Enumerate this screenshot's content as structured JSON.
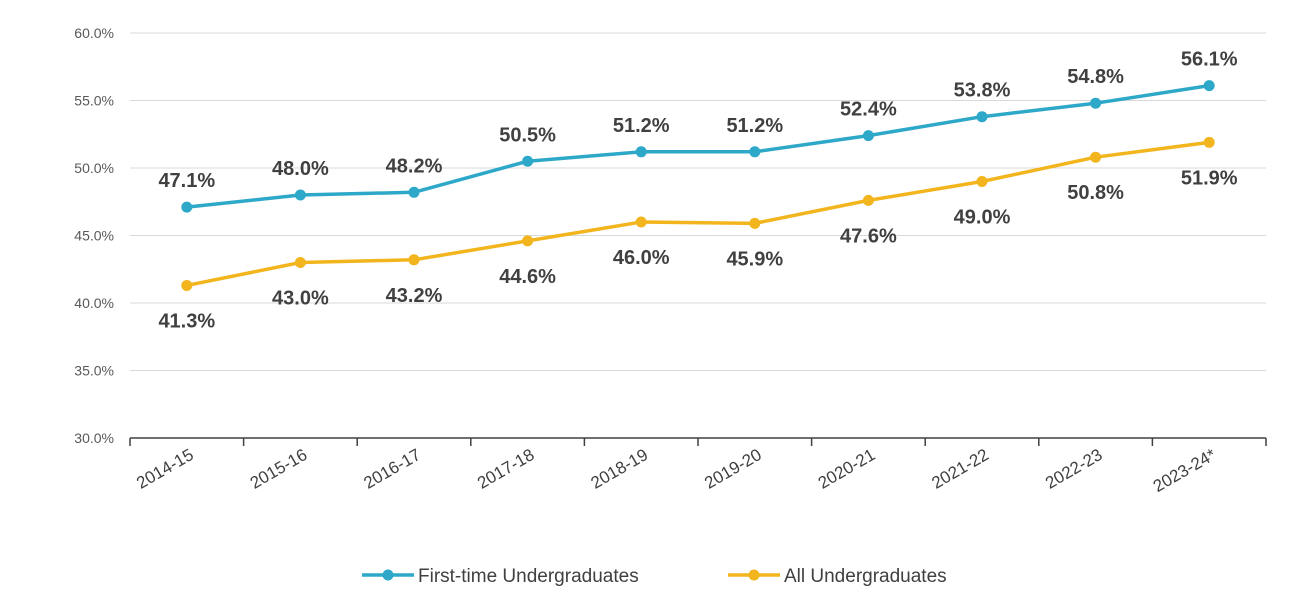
{
  "chart_data": {
    "type": "line",
    "title": "",
    "xlabel": "",
    "ylabel": "",
    "ylim": [
      30,
      60
    ],
    "y_ticks": [
      30,
      35,
      40,
      45,
      50,
      55,
      60
    ],
    "y_tick_labels": [
      "30.0%",
      "35.0%",
      "40.0%",
      "45.0%",
      "50.0%",
      "55.0%",
      "60.0%"
    ],
    "categories": [
      "2014-15",
      "2015-16",
      "2016-17",
      "2017-18",
      "2018-19",
      "2019-20",
      "2020-21",
      "2021-22",
      "2022-23",
      "2023-24*"
    ],
    "grid": true,
    "legend_position": "bottom",
    "series": [
      {
        "name": "First-time Undergraduates",
        "color": "#2EA8C8",
        "label_position": "above",
        "values": [
          47.1,
          48.0,
          48.2,
          50.5,
          51.2,
          51.2,
          52.4,
          53.8,
          54.8,
          56.1
        ],
        "labels": [
          "47.1%",
          "48.0%",
          "48.2%",
          "50.5%",
          "51.2%",
          "51.2%",
          "52.4%",
          "53.8%",
          "54.8%",
          "56.1%"
        ]
      },
      {
        "name": "All Undergraduates",
        "color": "#F2B51D",
        "label_position": "below",
        "values": [
          41.3,
          43.0,
          43.2,
          44.6,
          46.0,
          45.9,
          47.6,
          49.0,
          50.8,
          51.9
        ],
        "labels": [
          "41.3%",
          "43.0%",
          "43.2%",
          "44.6%",
          "46.0%",
          "45.9%",
          "47.6%",
          "49.0%",
          "50.8%",
          "51.9%"
        ]
      }
    ]
  }
}
